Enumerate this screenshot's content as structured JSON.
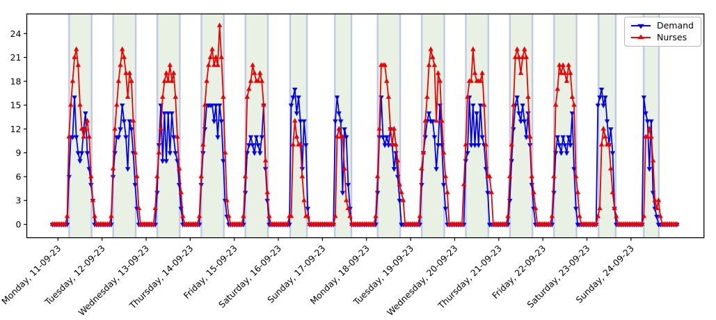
{
  "chart_data": {
    "type": "line",
    "title": "",
    "xlabel": "",
    "ylabel": "",
    "yticks": [
      0,
      3,
      6,
      9,
      12,
      15,
      18,
      21,
      24
    ],
    "ylim": [
      0,
      26.5
    ],
    "legend_position": "upper right",
    "grid": false,
    "series_meta": {
      "demand": {
        "label": "Demand",
        "color": "#0000ee",
        "marker": "triangle-down"
      },
      "nurses": {
        "label": "Nurses",
        "color": "#ee0000",
        "marker": "triangle-up"
      }
    },
    "colors": {
      "shift_band_fill": "#e5f0e1",
      "shift_band_edge": "#96a5e1",
      "spine": "#000000"
    },
    "x_unit": "hour-of-day, 24 points per day",
    "days": [
      {
        "label": "Monday, 11-09-23",
        "shift_window": [
          6.05,
          18.35
        ],
        "demand": [
          0,
          0,
          0,
          0,
          0,
          0,
          6,
          11,
          11,
          16,
          11,
          9,
          8,
          9,
          12,
          14,
          9,
          7,
          5,
          3,
          0,
          0,
          0,
          0
        ],
        "nurses": [
          0,
          0,
          0,
          0,
          0,
          1,
          11,
          15,
          18,
          21,
          22,
          20,
          15,
          12,
          11,
          12,
          13,
          11,
          6,
          3,
          1,
          0,
          0,
          0
        ]
      },
      {
        "label": "Tuesday, 12-09-23",
        "shift_window": [
          6.05,
          18.35
        ],
        "demand": [
          0,
          0,
          0,
          0,
          0,
          0,
          6,
          9,
          11,
          11,
          12,
          15,
          13,
          11,
          7,
          13,
          12,
          9,
          5,
          2,
          0,
          0,
          0,
          0
        ],
        "nurses": [
          0,
          0,
          0,
          0,
          0,
          1,
          7,
          12,
          15,
          18,
          20,
          22,
          21,
          19,
          16,
          19,
          18,
          13,
          9,
          6,
          2,
          0,
          0,
          0
        ]
      },
      {
        "label": "Wednesday, 13-09-23",
        "shift_window": [
          6.05,
          18.35
        ],
        "demand": [
          0,
          0,
          0,
          0,
          0,
          0,
          4,
          10,
          15,
          8,
          14,
          8,
          14,
          9,
          14,
          11,
          9,
          8,
          5,
          2,
          0,
          0,
          0,
          0
        ],
        "nurses": [
          0,
          0,
          0,
          0,
          0,
          2,
          6,
          9,
          12,
          16,
          18,
          19,
          18,
          20,
          18,
          19,
          16,
          11,
          7,
          4,
          1,
          0,
          0,
          0
        ]
      },
      {
        "label": "Thursday, 14-09-23",
        "shift_window": [
          6.05,
          18.35
        ],
        "demand": [
          0,
          0,
          0,
          0,
          0,
          0,
          5,
          9,
          12,
          15,
          15,
          15,
          15,
          13,
          15,
          11,
          15,
          13,
          8,
          3,
          1,
          0,
          0,
          0
        ],
        "nurses": [
          0,
          0,
          0,
          0,
          0,
          1,
          6,
          10,
          15,
          18,
          20,
          21,
          22,
          20,
          21,
          20,
          25,
          21,
          16,
          9,
          3,
          1,
          0,
          0
        ]
      },
      {
        "label": "Friday, 15-09-23",
        "shift_window": [
          6.05,
          18.35
        ],
        "demand": [
          0,
          0,
          0,
          0,
          0,
          0,
          4,
          9,
          10,
          11,
          10,
          9,
          11,
          10,
          9,
          11,
          15,
          7,
          3,
          0,
          0,
          0,
          0,
          0
        ],
        "nurses": [
          0,
          0,
          0,
          0,
          0,
          1,
          6,
          16,
          17,
          18,
          20,
          19,
          18,
          18,
          19,
          18,
          15,
          8,
          4,
          1,
          0,
          0,
          0,
          0
        ]
      },
      {
        "label": "Saturday, 16-09-23",
        "shift_window": [
          6.4,
          15.6
        ],
        "demand": [
          0,
          0,
          0,
          0,
          0,
          0,
          0,
          15,
          16,
          17,
          14,
          16,
          13,
          7,
          13,
          10,
          2,
          0,
          0,
          0,
          0,
          0,
          0,
          0
        ],
        "nurses": [
          0,
          0,
          0,
          0,
          0,
          0,
          1,
          1,
          10,
          13,
          11,
          10,
          10,
          6,
          3,
          1,
          1,
          0,
          0,
          0,
          0,
          0,
          0,
          0
        ]
      },
      {
        "label": "Sunday, 17-09-23",
        "shift_window": [
          6.7,
          15.8
        ],
        "demand": [
          0,
          0,
          0,
          0,
          0,
          0,
          0,
          13,
          16,
          14,
          13,
          4,
          12,
          11,
          5,
          2,
          0,
          0,
          0,
          0,
          0,
          0,
          0,
          0
        ],
        "nurses": [
          0,
          0,
          0,
          0,
          0,
          0,
          0,
          1,
          11,
          12,
          11,
          11,
          7,
          3,
          2,
          1,
          0,
          0,
          0,
          0,
          0,
          0,
          0,
          0
        ]
      },
      {
        "label": "Monday, 18-09-23",
        "shift_window": [
          6.05,
          18.35
        ],
        "demand": [
          0,
          0,
          0,
          0,
          0,
          0,
          4,
          11,
          16,
          11,
          10,
          11,
          10,
          12,
          10,
          7,
          9,
          6,
          3,
          0,
          0,
          0,
          0,
          0
        ],
        "nurses": [
          0,
          0,
          0,
          0,
          0,
          1,
          6,
          12,
          20,
          20,
          20,
          18,
          16,
          12,
          10,
          12,
          10,
          8,
          5,
          4,
          3,
          0,
          0,
          0
        ]
      },
      {
        "label": "Tuesday, 19-09-23",
        "shift_window": [
          6.05,
          18.35
        ],
        "demand": [
          0,
          0,
          0,
          0,
          0,
          0,
          5,
          9,
          11,
          13,
          14,
          13,
          13,
          11,
          7,
          10,
          15,
          10,
          5,
          2,
          0,
          0,
          0,
          0
        ],
        "nurses": [
          0,
          0,
          0,
          0,
          0,
          1,
          7,
          9,
          13,
          16,
          20,
          22,
          21,
          20,
          13,
          19,
          18,
          13,
          9,
          6,
          4,
          0,
          0,
          0
        ]
      },
      {
        "label": "Wednesday, 20-09-23",
        "shift_window": [
          6.05,
          18.35
        ],
        "demand": [
          0,
          0,
          0,
          0,
          0,
          0,
          8,
          9,
          16,
          10,
          15,
          10,
          14,
          10,
          15,
          11,
          10,
          7,
          4,
          0,
          0,
          0,
          0,
          0
        ],
        "nurses": [
          0,
          0,
          0,
          0,
          0,
          5,
          10,
          16,
          18,
          18,
          22,
          19,
          18,
          18,
          18,
          19,
          15,
          10,
          6,
          6,
          4,
          0,
          0,
          0
        ]
      },
      {
        "label": "Thursday, 21-09-23",
        "shift_window": [
          6.05,
          18.35
        ],
        "demand": [
          0,
          0,
          0,
          0,
          0,
          0,
          3,
          8,
          12,
          15,
          16,
          14,
          13,
          15,
          13,
          11,
          14,
          10,
          5,
          2,
          0,
          0,
          0,
          0
        ],
        "nurses": [
          0,
          0,
          0,
          0,
          0,
          1,
          6,
          10,
          15,
          21,
          22,
          21,
          19,
          21,
          22,
          21,
          16,
          11,
          6,
          4,
          2,
          0,
          0,
          0
        ]
      },
      {
        "label": "Friday, 22-09-23",
        "shift_window": [
          6.05,
          18.35
        ],
        "demand": [
          0,
          0,
          0,
          0,
          0,
          0,
          4,
          9,
          11,
          10,
          9,
          11,
          10,
          9,
          11,
          10,
          14,
          7,
          2,
          0,
          0,
          0,
          0,
          0
        ],
        "nurses": [
          0,
          0,
          0,
          0,
          0,
          1,
          6,
          15,
          17,
          20,
          19,
          20,
          19,
          18,
          20,
          19,
          16,
          15,
          6,
          4,
          1,
          0,
          0,
          0
        ]
      },
      {
        "label": "Saturday, 23-09-23",
        "shift_window": [
          6.3,
          15.7
        ],
        "demand": [
          0,
          0,
          0,
          0,
          0,
          0,
          15,
          16,
          17,
          15,
          16,
          13,
          10,
          12,
          9,
          2,
          0,
          0,
          0,
          0,
          0,
          0,
          0,
          0
        ],
        "nurses": [
          0,
          0,
          0,
          0,
          0,
          0,
          1,
          2,
          10,
          12,
          11,
          10,
          10,
          7,
          4,
          2,
          1,
          0,
          0,
          0,
          0,
          0,
          0,
          0
        ]
      },
      {
        "label": "Sunday, 24-09-23",
        "shift_window": [
          6.9,
          15.2
        ],
        "demand": [
          0,
          0,
          0,
          0,
          0,
          0,
          0,
          16,
          14,
          13,
          7,
          13,
          4,
          2,
          1,
          0,
          0,
          0,
          0,
          0,
          0,
          0,
          0,
          0
        ],
        "nurses": [
          0,
          0,
          0,
          0,
          0,
          0,
          0,
          1,
          11,
          11,
          12,
          11,
          8,
          3,
          2,
          3,
          1,
          0,
          0,
          0,
          0,
          0,
          0,
          0
        ]
      }
    ]
  }
}
